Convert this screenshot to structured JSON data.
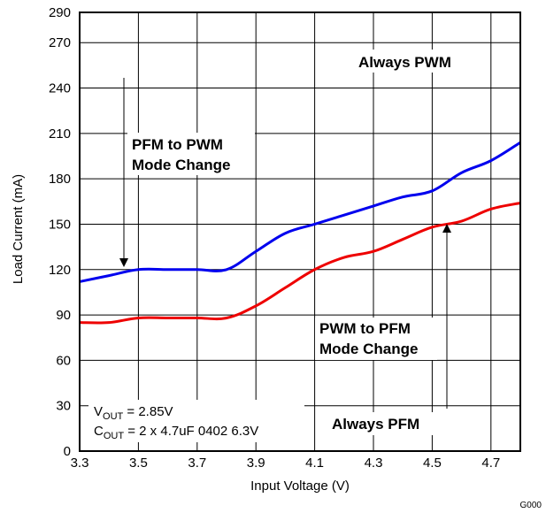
{
  "chart_data": {
    "type": "line",
    "title": "",
    "xlabel": "Input Voltage (V)",
    "ylabel": "Load Current (mA)",
    "xlim": [
      3.3,
      4.8
    ],
    "ylim": [
      0,
      290
    ],
    "xticks": [
      "3.3",
      "3.5",
      "3.7",
      "3.9",
      "4.1",
      "4.3",
      "4.5",
      "4.7"
    ],
    "yticks": [
      "0",
      "30",
      "60",
      "90",
      "120",
      "150",
      "180",
      "210",
      "240",
      "270",
      "290"
    ],
    "grid": true,
    "legend": "none",
    "series": [
      {
        "color": "#0000ee",
        "x": [
          3.3,
          3.4,
          3.5,
          3.6,
          3.7,
          3.8,
          3.9,
          4.0,
          4.1,
          4.2,
          4.3,
          4.4,
          4.5,
          4.6,
          4.7,
          4.8
        ],
        "y": [
          112,
          116,
          120,
          120,
          120,
          120,
          132,
          144,
          150,
          156,
          162,
          168,
          172,
          184,
          192,
          204
        ]
      },
      {
        "color": "#ee0000",
        "x": [
          3.3,
          3.4,
          3.5,
          3.6,
          3.7,
          3.8,
          3.9,
          4.0,
          4.1,
          4.2,
          4.3,
          4.4,
          4.5,
          4.6,
          4.7,
          4.8
        ],
        "y": [
          85,
          85,
          88,
          88,
          88,
          88,
          96,
          108,
          120,
          128,
          132,
          140,
          148,
          152,
          160,
          164
        ]
      }
    ],
    "annotations": {
      "always_pwm": "Always PWM",
      "always_pfm": "Always PFM",
      "pfm_to_pwm_line1": "PFM to PWM",
      "pfm_to_pwm_line2": "Mode Change",
      "pwm_to_pfm_line1": "PWM to PFM",
      "pwm_to_pfm_line2": "Mode Change",
      "vout_main": "V",
      "vout_sub": "OUT",
      "vout_rest": " = 2.85V",
      "cout_main": "C",
      "cout_sub": "OUT",
      "cout_rest": " = 2 x 4.7uF 0402 6.3V"
    },
    "figure_code": "G000"
  }
}
